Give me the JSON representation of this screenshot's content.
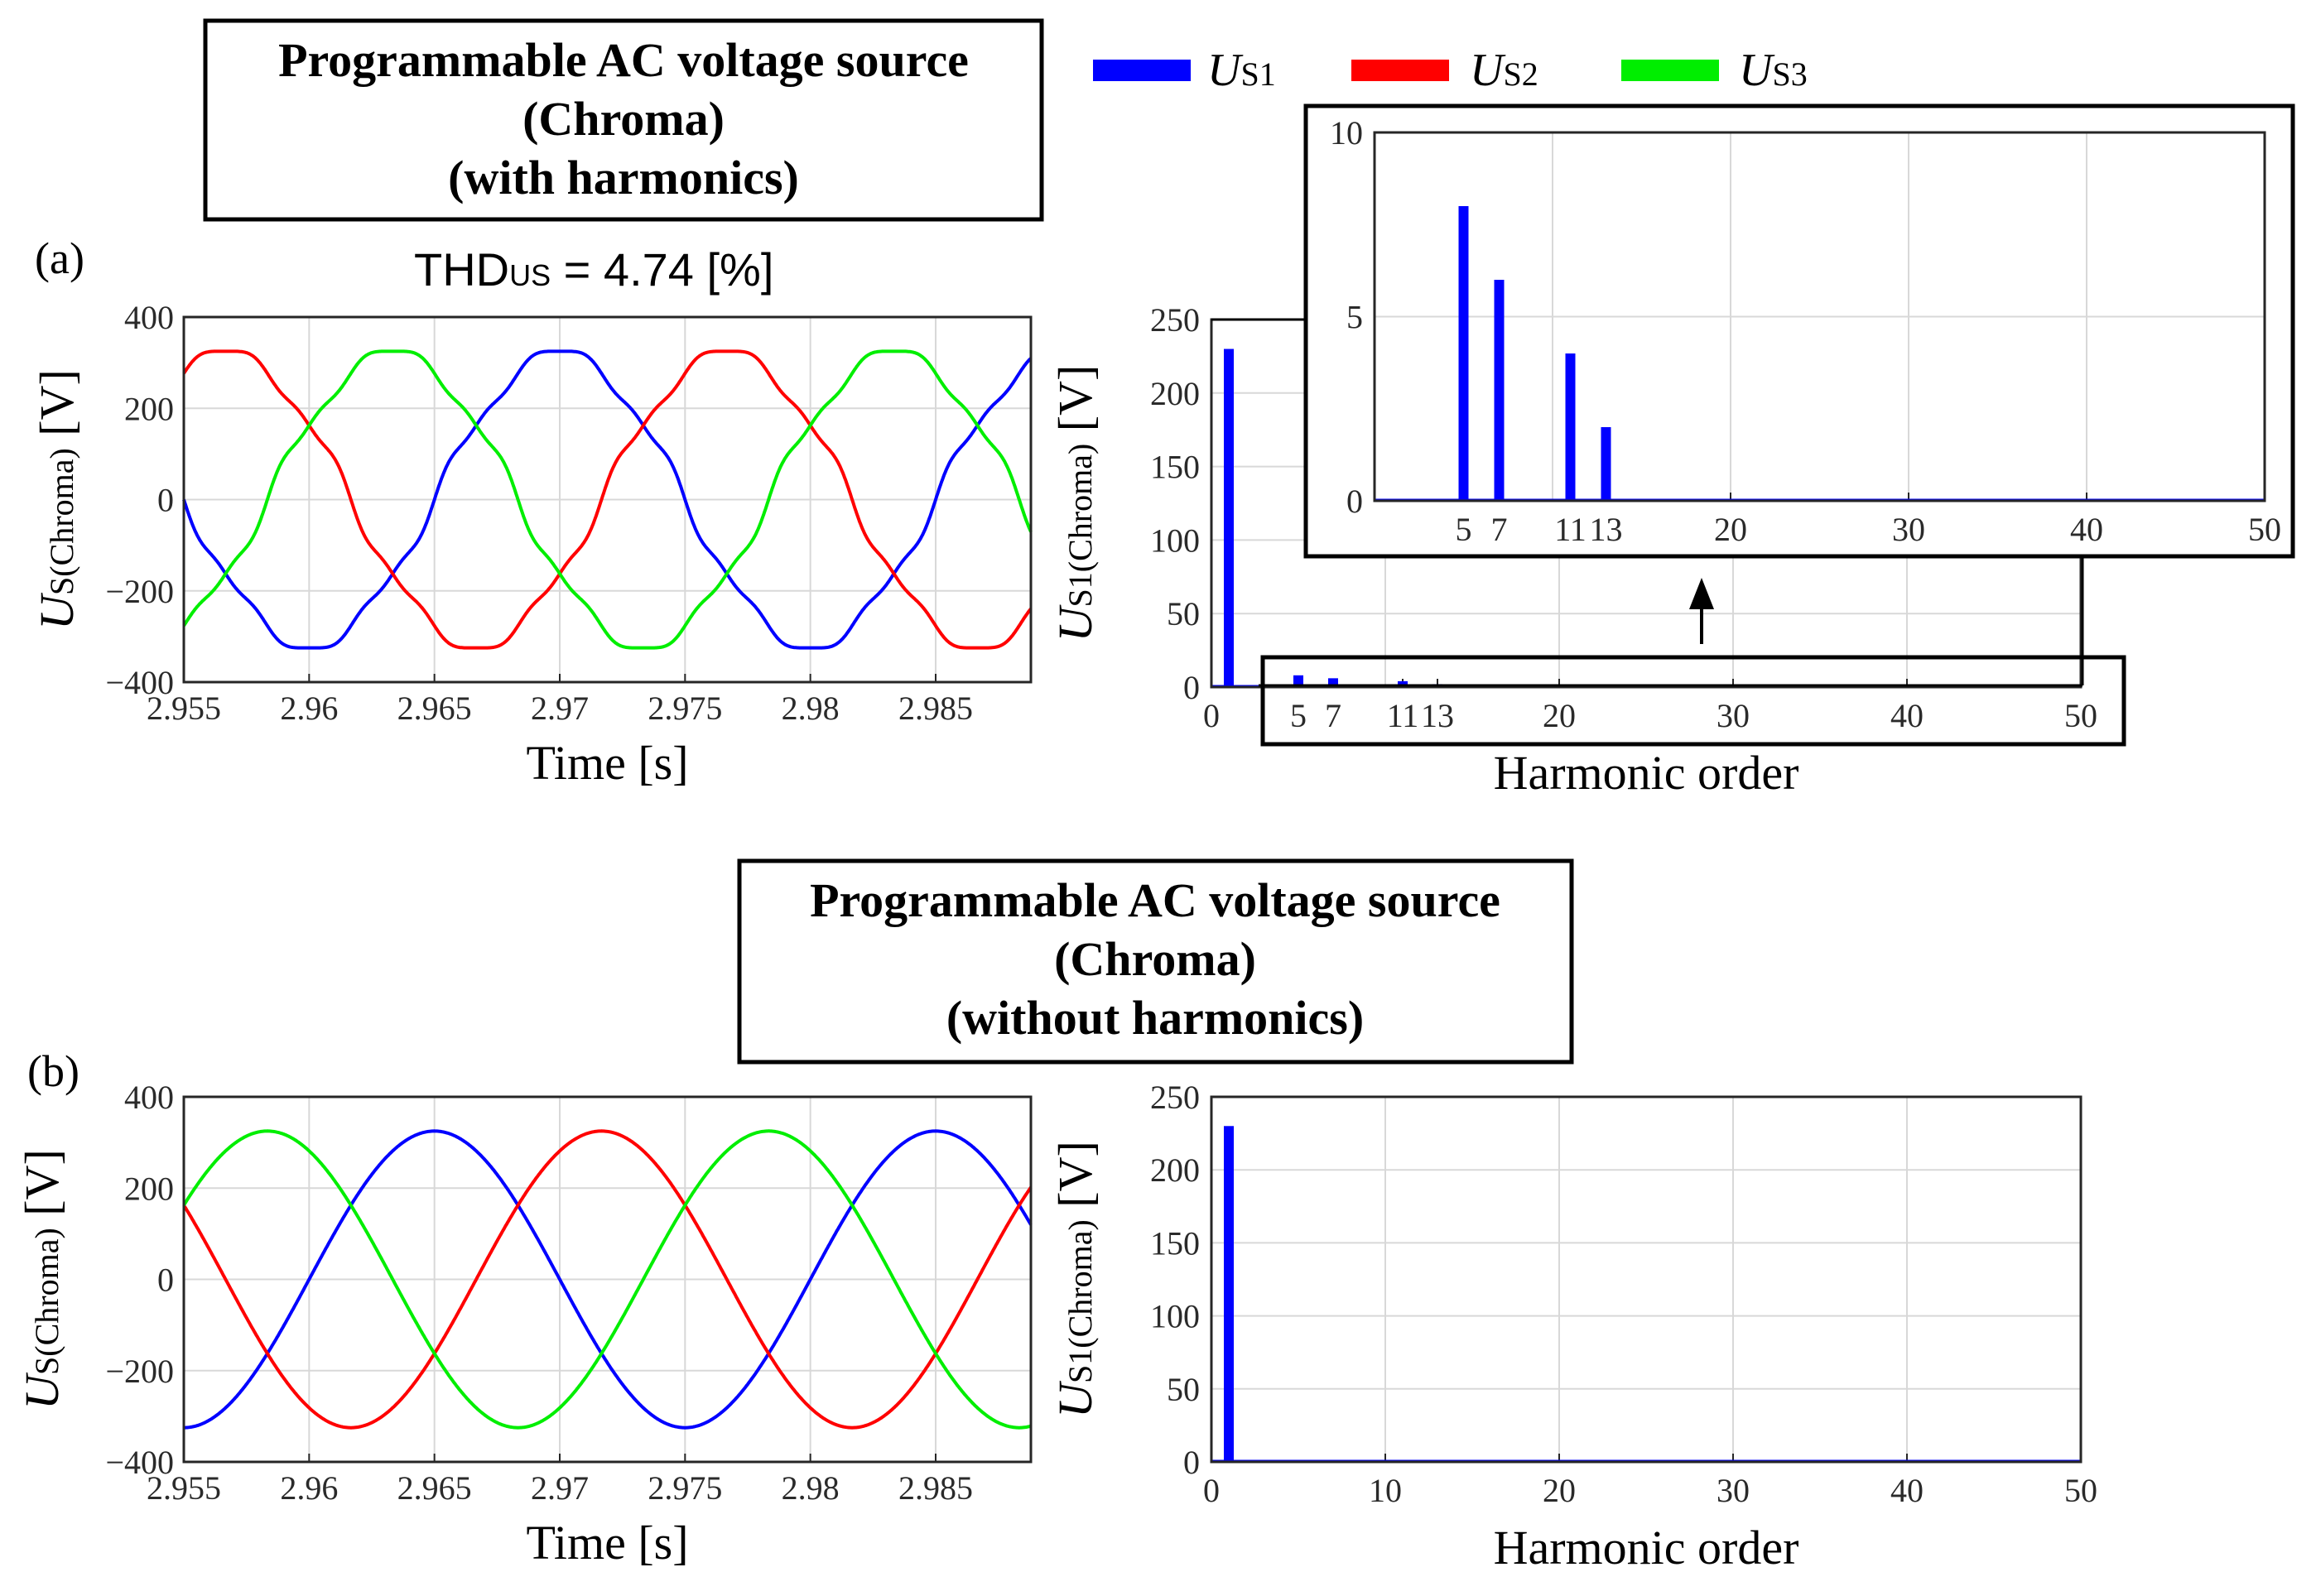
{
  "legend": {
    "items": [
      {
        "main": "U",
        "sub": "S1",
        "color": "#0000ff"
      },
      {
        "main": "U",
        "sub": "S2",
        "color": "#ff0000"
      },
      {
        "main": "U",
        "sub": "S3",
        "color": "#00ee00"
      }
    ]
  },
  "panel_a": {
    "label": "(a)",
    "title": [
      "Programmable AC voltage source",
      "(Chroma)",
      "(with harmonics)"
    ],
    "thd": {
      "prefix": "THD",
      "sub": "US",
      "value": " = 4.74 [%]"
    }
  },
  "panel_b": {
    "label": "(b)",
    "title": [
      "Programmable AC voltage source",
      "(Chroma)",
      "(without harmonics)"
    ]
  },
  "chart_data": [
    {
      "type": "line",
      "panel": "a",
      "xlabel": "Time [s]",
      "ylabel": {
        "main": "U",
        "sub": "S(Chroma)",
        "unit": " [V]"
      },
      "xlim": [
        2.955,
        2.9888
      ],
      "ylim": [
        -400,
        400
      ],
      "xticks": [
        "2.955",
        "2.96",
        "2.965",
        "2.97",
        "2.975",
        "2.98",
        "2.985"
      ],
      "yticks": [
        "400",
        "200",
        "0",
        "−200",
        "−400"
      ],
      "signal": {
        "frequency_hz": 50,
        "fundamental_peak_v": 325,
        "harmonics_peak_v": {
          "5": 11.3,
          "7": 8.5,
          "11": 5.7,
          "13": 2.8
        }
      },
      "series": [
        {
          "name": "US1",
          "phase_deg": -90,
          "color": "#0000ff"
        },
        {
          "name": "US2",
          "phase_deg": -210,
          "color": "#ff0000"
        },
        {
          "name": "US3",
          "phase_deg": 30,
          "color": "#00ee00"
        }
      ],
      "grid": true
    },
    {
      "type": "bar",
      "panel": "a",
      "xlabel": "Harmonic order",
      "ylabel": {
        "main": "U",
        "sub": "S1(Chroma)",
        "unit": " [V]"
      },
      "xlim": [
        0,
        50
      ],
      "ylim": [
        0,
        250
      ],
      "xticks": [
        "0",
        "5",
        "7",
        "11",
        "13",
        "20",
        "30",
        "40",
        "50"
      ],
      "yticks": [
        "250",
        "200",
        "150",
        "100",
        "50",
        "0"
      ],
      "bars": [
        {
          "x": 1,
          "y": 230
        },
        {
          "x": 5,
          "y": 8
        },
        {
          "x": 7,
          "y": 6
        },
        {
          "x": 11,
          "y": 4
        },
        {
          "x": 13,
          "y": 2
        }
      ],
      "color": "#0000ff",
      "grid": true,
      "inset": {
        "xlim": [
          0,
          50
        ],
        "ylim": [
          0,
          10
        ],
        "xticks": [
          "5",
          "7",
          "11",
          "13",
          "20",
          "30",
          "40",
          "50"
        ],
        "yticks": [
          "10",
          "5",
          "0"
        ],
        "bars": [
          {
            "x": 5,
            "y": 8
          },
          {
            "x": 7,
            "y": 6
          },
          {
            "x": 11,
            "y": 4
          },
          {
            "x": 13,
            "y": 2
          }
        ]
      }
    },
    {
      "type": "line",
      "panel": "b",
      "xlabel": "Time [s]",
      "ylabel": {
        "main": "U",
        "sub": "S(Chroma)",
        "unit": " [V]"
      },
      "xlim": [
        2.955,
        2.9888
      ],
      "ylim": [
        -400,
        400
      ],
      "xticks": [
        "2.955",
        "2.96",
        "2.965",
        "2.97",
        "2.975",
        "2.98",
        "2.985"
      ],
      "yticks": [
        "400",
        "200",
        "0",
        "−200",
        "−400"
      ],
      "signal": {
        "frequency_hz": 50,
        "fundamental_peak_v": 325,
        "harmonics_peak_v": {}
      },
      "series": [
        {
          "name": "US1",
          "phase_deg": 0,
          "color": "#0000ff"
        },
        {
          "name": "US2",
          "phase_deg": -120,
          "color": "#ff0000"
        },
        {
          "name": "US3",
          "phase_deg": 120,
          "color": "#00ee00"
        }
      ],
      "grid": true
    },
    {
      "type": "bar",
      "panel": "b",
      "xlabel": "Harmonic order",
      "ylabel": {
        "main": "U",
        "sub": "S1(Chroma)",
        "unit": " [V]"
      },
      "xlim": [
        0,
        50
      ],
      "ylim": [
        0,
        250
      ],
      "xticks": [
        "0",
        "10",
        "20",
        "30",
        "40",
        "50"
      ],
      "yticks": [
        "250",
        "200",
        "150",
        "100",
        "50",
        "0"
      ],
      "bars": [
        {
          "x": 1,
          "y": 230
        }
      ],
      "color": "#0000ff",
      "grid": true
    }
  ]
}
